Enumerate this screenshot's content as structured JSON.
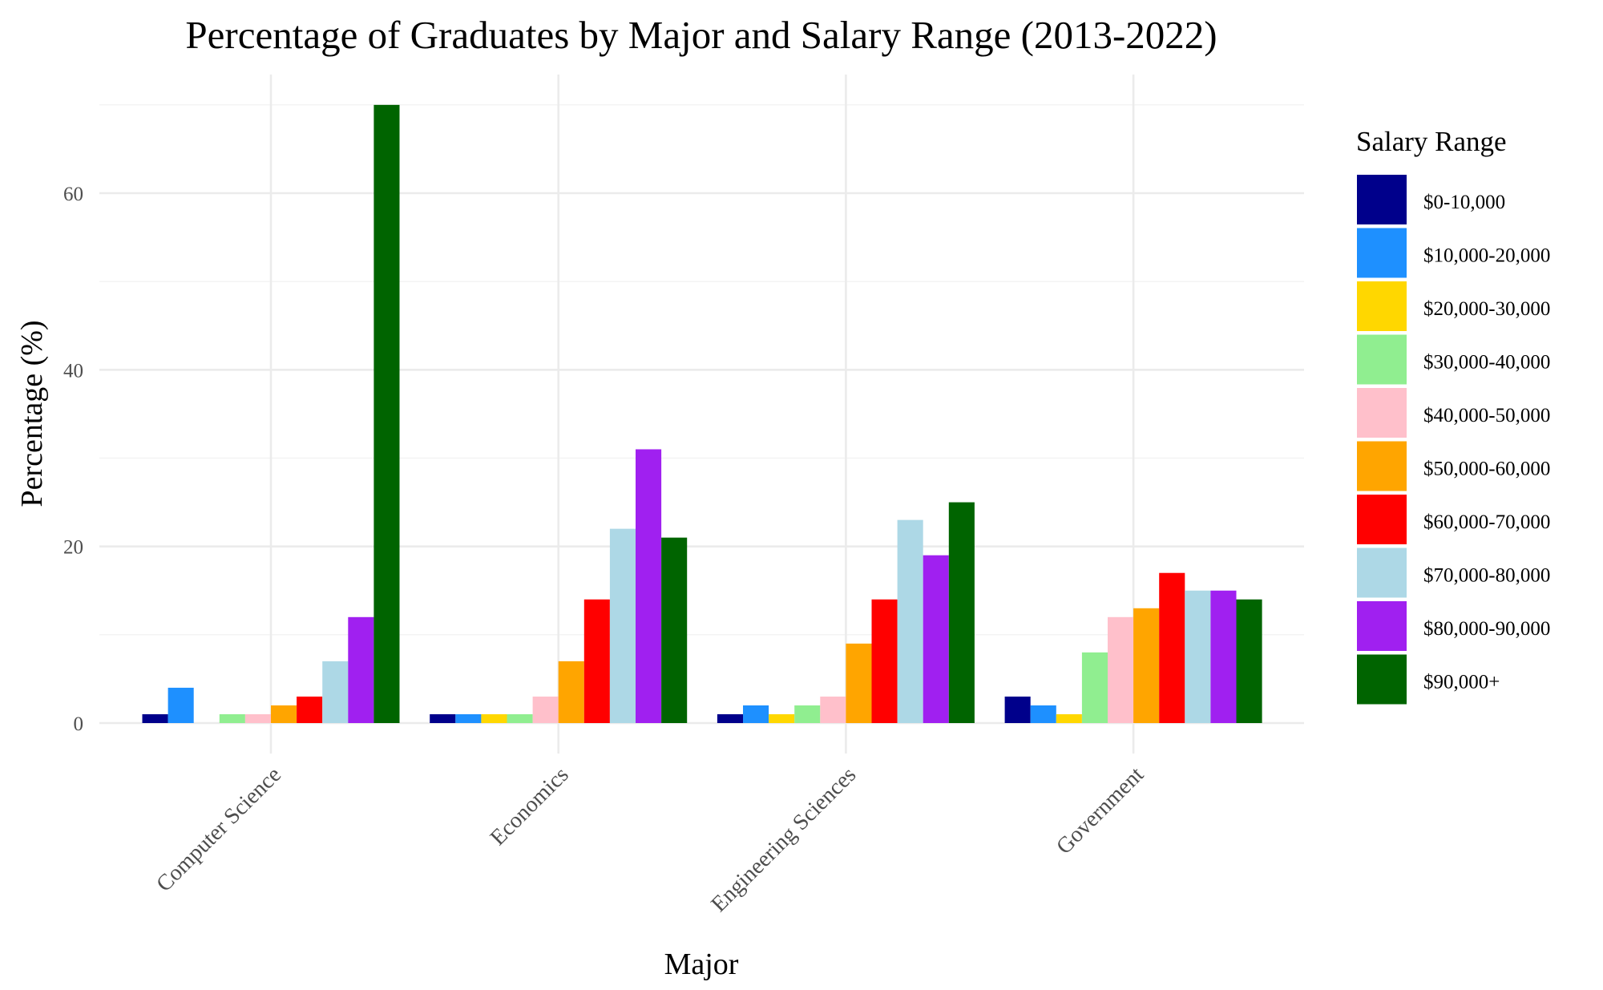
{
  "chart_data": {
    "type": "bar",
    "title": "Percentage of Graduates by Major and Salary Range (2013-2022)",
    "xlabel": "Major",
    "ylabel": "Percentage (%)",
    "ylim": [
      0,
      70
    ],
    "yticks": [
      0,
      20,
      40,
      60
    ],
    "grid": true,
    "legend_title": "Salary Range",
    "legend_position": "right",
    "categories": [
      "Computer Science",
      "Economics",
      "Engineering Sciences",
      "Government"
    ],
    "series": [
      {
        "name": "$0-10,000",
        "color": "#00008b",
        "values": [
          1,
          1,
          1,
          3
        ]
      },
      {
        "name": "$10,000-20,000",
        "color": "#1e90ff",
        "values": [
          4,
          1,
          2,
          2
        ]
      },
      {
        "name": "$20,000-30,000",
        "color": "#ffd700",
        "values": [
          0,
          1,
          1,
          1
        ]
      },
      {
        "name": "$30,000-40,000",
        "color": "#90ee90",
        "values": [
          1,
          1,
          2,
          8
        ]
      },
      {
        "name": "$40,000-50,000",
        "color": "#ffc0cb",
        "values": [
          1,
          3,
          3,
          12
        ]
      },
      {
        "name": "$50,000-60,000",
        "color": "#ffa500",
        "values": [
          2,
          7,
          9,
          13
        ]
      },
      {
        "name": "$60,000-70,000",
        "color": "#ff0000",
        "values": [
          3,
          14,
          14,
          17
        ]
      },
      {
        "name": "$70,000-80,000",
        "color": "#add8e6",
        "values": [
          7,
          22,
          23,
          15
        ]
      },
      {
        "name": "$80,000-90,000",
        "color": "#a020f0",
        "values": [
          12,
          31,
          19,
          15
        ]
      },
      {
        "name": "$90,000+",
        "color": "#006400",
        "values": [
          70,
          21,
          25,
          14
        ]
      }
    ]
  }
}
